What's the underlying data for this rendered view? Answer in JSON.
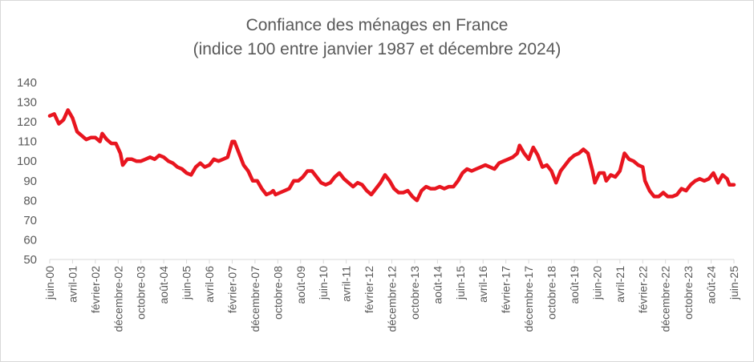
{
  "chart_data": {
    "type": "line",
    "title": "Confiance des ménages en France",
    "subtitle": "(indice 100 entre janvier 1987 et décembre 2024)",
    "xlabel": "",
    "ylabel": "",
    "ylim": [
      50,
      140
    ],
    "yticks": [
      50,
      60,
      70,
      80,
      90,
      100,
      110,
      120,
      130,
      140
    ],
    "x_tick_labels": [
      "juin-00",
      "avril-01",
      "février-02",
      "décembre-02",
      "octobre-03",
      "août-04",
      "juin-05",
      "avril-06",
      "février-07",
      "décembre-07",
      "octobre-08",
      "août-09",
      "juin-10",
      "avril-11",
      "février-12",
      "décembre-12",
      "octobre-13",
      "août-14",
      "juin-15",
      "avril-16",
      "février-17",
      "décembre-17",
      "octobre-18",
      "août-19",
      "juin-20",
      "avril-21",
      "février-22",
      "décembre-22",
      "octobre-23",
      "août-24",
      "juin-25"
    ],
    "x_start": "2000-06",
    "x_end": "2025-06",
    "grid": false,
    "legend": "none",
    "series": [
      {
        "color": "#e8151f",
        "points": [
          [
            "2000-06",
            123
          ],
          [
            "2000-08",
            124
          ],
          [
            "2000-10",
            119
          ],
          [
            "2000-12",
            121
          ],
          [
            "2001-02",
            126
          ],
          [
            "2001-04",
            122
          ],
          [
            "2001-06",
            115
          ],
          [
            "2001-08",
            113
          ],
          [
            "2001-10",
            111
          ],
          [
            "2001-12",
            112
          ],
          [
            "2002-02",
            112
          ],
          [
            "2002-04",
            110
          ],
          [
            "2002-05",
            114
          ],
          [
            "2002-07",
            111
          ],
          [
            "2002-09",
            109
          ],
          [
            "2002-11",
            109
          ],
          [
            "2003-01",
            104
          ],
          [
            "2003-02",
            98
          ],
          [
            "2003-04",
            101
          ],
          [
            "2003-06",
            101
          ],
          [
            "2003-08",
            100
          ],
          [
            "2003-10",
            100
          ],
          [
            "2003-12",
            101
          ],
          [
            "2004-02",
            102
          ],
          [
            "2004-04",
            101
          ],
          [
            "2004-06",
            103
          ],
          [
            "2004-08",
            102
          ],
          [
            "2004-10",
            100
          ],
          [
            "2004-12",
            99
          ],
          [
            "2005-02",
            97
          ],
          [
            "2005-04",
            96
          ],
          [
            "2005-06",
            94
          ],
          [
            "2005-08",
            93
          ],
          [
            "2005-10",
            97
          ],
          [
            "2005-12",
            99
          ],
          [
            "2006-02",
            97
          ],
          [
            "2006-04",
            98
          ],
          [
            "2006-06",
            101
          ],
          [
            "2006-08",
            100
          ],
          [
            "2006-10",
            101
          ],
          [
            "2006-12",
            102
          ],
          [
            "2007-02",
            110
          ],
          [
            "2007-03",
            110
          ],
          [
            "2007-05",
            104
          ],
          [
            "2007-07",
            98
          ],
          [
            "2007-09",
            95
          ],
          [
            "2007-11",
            90
          ],
          [
            "2008-01",
            90
          ],
          [
            "2008-03",
            86
          ],
          [
            "2008-05",
            83
          ],
          [
            "2008-07",
            84
          ],
          [
            "2008-08",
            85
          ],
          [
            "2008-09",
            83
          ],
          [
            "2008-11",
            84
          ],
          [
            "2009-01",
            85
          ],
          [
            "2009-03",
            86
          ],
          [
            "2009-05",
            90
          ],
          [
            "2009-07",
            90
          ],
          [
            "2009-09",
            92
          ],
          [
            "2009-11",
            95
          ],
          [
            "2010-01",
            95
          ],
          [
            "2010-03",
            92
          ],
          [
            "2010-05",
            89
          ],
          [
            "2010-07",
            88
          ],
          [
            "2010-09",
            89
          ],
          [
            "2010-11",
            92
          ],
          [
            "2011-01",
            94
          ],
          [
            "2011-03",
            91
          ],
          [
            "2011-05",
            89
          ],
          [
            "2011-07",
            87
          ],
          [
            "2011-09",
            89
          ],
          [
            "2011-11",
            88
          ],
          [
            "2012-01",
            85
          ],
          [
            "2012-03",
            83
          ],
          [
            "2012-05",
            86
          ],
          [
            "2012-07",
            89
          ],
          [
            "2012-09",
            93
          ],
          [
            "2012-11",
            90
          ],
          [
            "2013-01",
            86
          ],
          [
            "2013-03",
            84
          ],
          [
            "2013-05",
            84
          ],
          [
            "2013-07",
            85
          ],
          [
            "2013-09",
            82
          ],
          [
            "2013-11",
            80
          ],
          [
            "2014-01",
            85
          ],
          [
            "2014-03",
            87
          ],
          [
            "2014-05",
            86
          ],
          [
            "2014-07",
            86
          ],
          [
            "2014-09",
            87
          ],
          [
            "2014-11",
            86
          ],
          [
            "2015-01",
            87
          ],
          [
            "2015-03",
            87
          ],
          [
            "2015-05",
            90
          ],
          [
            "2015-07",
            94
          ],
          [
            "2015-09",
            96
          ],
          [
            "2015-11",
            95
          ],
          [
            "2016-01",
            96
          ],
          [
            "2016-03",
            97
          ],
          [
            "2016-05",
            98
          ],
          [
            "2016-07",
            97
          ],
          [
            "2016-09",
            96
          ],
          [
            "2016-11",
            99
          ],
          [
            "2017-01",
            100
          ],
          [
            "2017-03",
            101
          ],
          [
            "2017-05",
            102
          ],
          [
            "2017-07",
            104
          ],
          [
            "2017-08",
            108
          ],
          [
            "2017-10",
            104
          ],
          [
            "2017-12",
            101
          ],
          [
            "2018-02",
            107
          ],
          [
            "2018-04",
            103
          ],
          [
            "2018-06",
            97
          ],
          [
            "2018-08",
            98
          ],
          [
            "2018-10",
            95
          ],
          [
            "2018-12",
            89
          ],
          [
            "2019-02",
            95
          ],
          [
            "2019-04",
            98
          ],
          [
            "2019-06",
            101
          ],
          [
            "2019-08",
            103
          ],
          [
            "2019-10",
            104
          ],
          [
            "2019-12",
            106
          ],
          [
            "2020-02",
            104
          ],
          [
            "2020-04",
            95
          ],
          [
            "2020-05",
            89
          ],
          [
            "2020-07",
            94
          ],
          [
            "2020-09",
            94
          ],
          [
            "2020-10",
            90
          ],
          [
            "2020-12",
            93
          ],
          [
            "2021-02",
            92
          ],
          [
            "2021-04",
            95
          ],
          [
            "2021-06",
            104
          ],
          [
            "2021-08",
            101
          ],
          [
            "2021-10",
            100
          ],
          [
            "2021-12",
            98
          ],
          [
            "2022-02",
            97
          ],
          [
            "2022-03",
            90
          ],
          [
            "2022-05",
            85
          ],
          [
            "2022-07",
            82
          ],
          [
            "2022-09",
            82
          ],
          [
            "2022-11",
            84
          ],
          [
            "2023-01",
            82
          ],
          [
            "2023-03",
            82
          ],
          [
            "2023-05",
            83
          ],
          [
            "2023-07",
            86
          ],
          [
            "2023-09",
            85
          ],
          [
            "2023-11",
            88
          ],
          [
            "2024-01",
            90
          ],
          [
            "2024-03",
            91
          ],
          [
            "2024-05",
            90
          ],
          [
            "2024-07",
            91
          ],
          [
            "2024-09",
            94
          ],
          [
            "2024-11",
            89
          ],
          [
            "2025-01",
            93
          ],
          [
            "2025-03",
            91
          ],
          [
            "2025-04",
            88
          ],
          [
            "2025-06",
            88
          ]
        ]
      }
    ]
  }
}
